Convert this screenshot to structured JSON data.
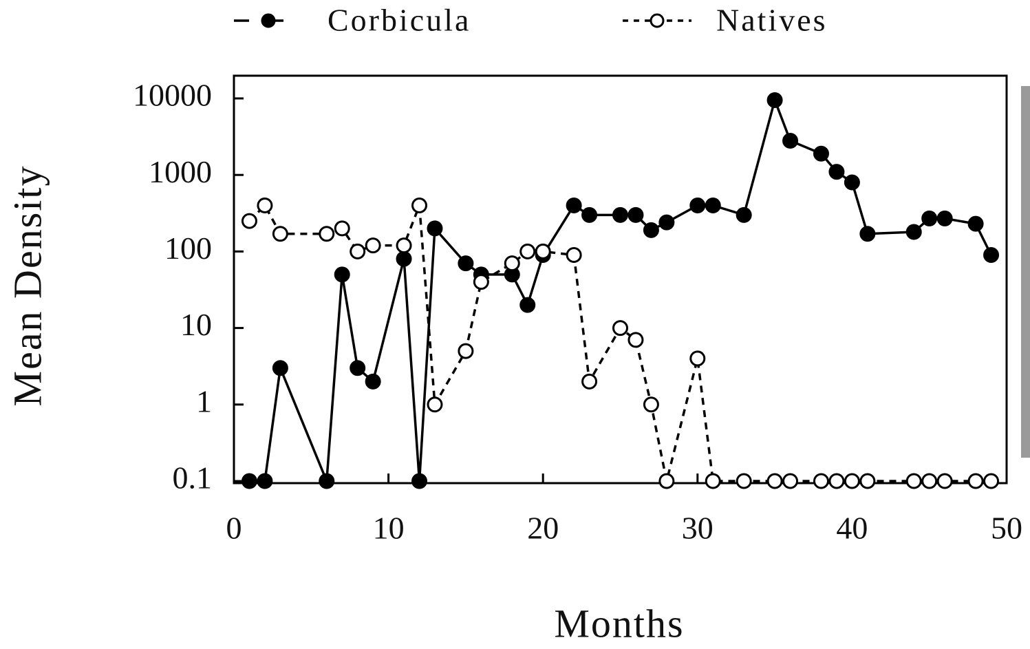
{
  "chart_data": {
    "type": "line",
    "x_label": "Months",
    "y_label": "Mean Density",
    "yscale": "log",
    "xlim": [
      0,
      50
    ],
    "xticks": [
      0,
      10,
      20,
      30,
      40,
      50
    ],
    "ylim": [
      0.1,
      10000
    ],
    "yticks": [
      0.1,
      1,
      10,
      100,
      1000,
      10000
    ],
    "legend": "top",
    "series": [
      {
        "name": "Corbicula",
        "color": "#000000",
        "marker": "filled",
        "line_style": "solid",
        "x": [
          1,
          2,
          3,
          6,
          7,
          8,
          9,
          11,
          12,
          13,
          15,
          16,
          18,
          19,
          20,
          22,
          23,
          25,
          26,
          27,
          28,
          30,
          31,
          33,
          35,
          36,
          38,
          39,
          40,
          41,
          44,
          45,
          46,
          48,
          49
        ],
        "values": [
          0.1,
          0.1,
          3,
          0.1,
          50,
          3,
          2,
          80,
          0.1,
          200,
          70,
          50,
          50,
          20,
          90,
          400,
          300,
          300,
          300,
          190,
          240,
          400,
          400,
          300,
          9500,
          2800,
          1900,
          1100,
          800,
          170,
          180,
          270,
          270,
          230,
          90
        ]
      },
      {
        "name": "Natives",
        "color": "#000000",
        "marker": "open",
        "line_style": "dashed",
        "x": [
          1,
          2,
          3,
          6,
          7,
          8,
          9,
          11,
          12,
          13,
          15,
          16,
          18,
          19,
          20,
          22,
          23,
          25,
          26,
          27,
          28,
          30,
          31,
          33,
          35,
          36,
          38,
          39,
          40,
          41,
          44,
          45,
          46,
          48,
          49
        ],
        "values": [
          250,
          400,
          170,
          170,
          200,
          100,
          120,
          120,
          400,
          1,
          5,
          40,
          70,
          100,
          100,
          90,
          2,
          10,
          7,
          1,
          0.1,
          4,
          0.1,
          0.1,
          0.1,
          0.1,
          0.1,
          0.1,
          0.1,
          0.1,
          0.1,
          0.1,
          0.1,
          0.1,
          0.1
        ]
      }
    ]
  }
}
